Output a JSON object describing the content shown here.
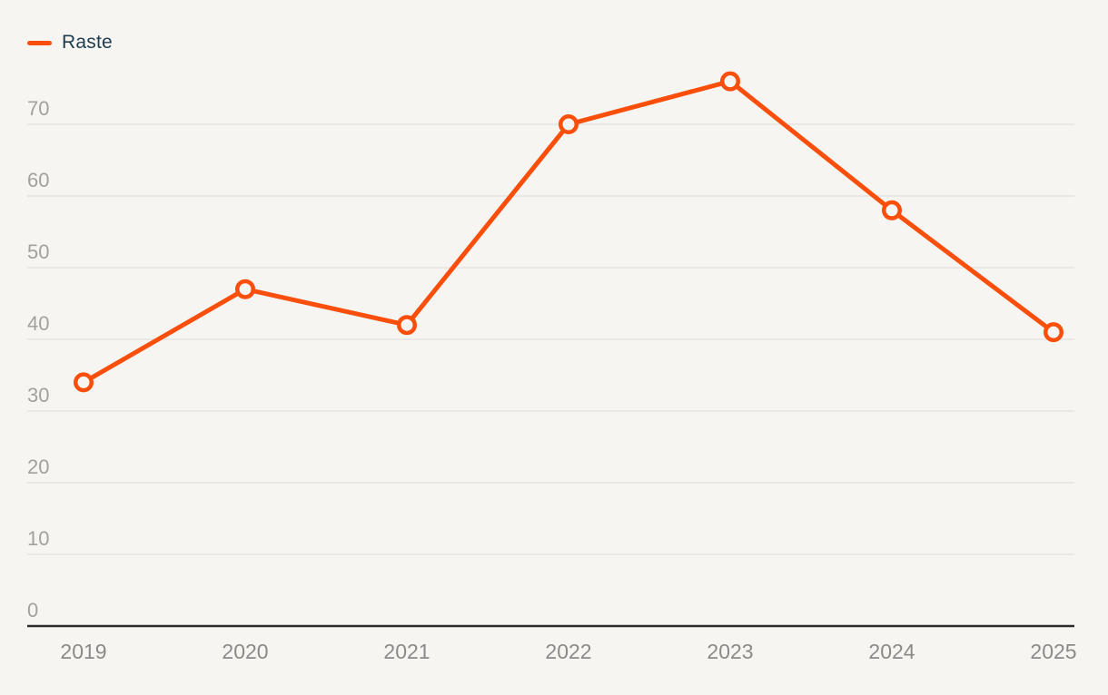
{
  "chart": {
    "legend": {
      "position": "top-left"
    },
    "colors": {
      "series": "#fa4e0b",
      "background": "#f7f5f2",
      "grid": "#e3e1de",
      "axis": "#2b2b2b",
      "y_label": "#a3a19e",
      "x_label": "#8c8a88",
      "legend_text": "#1d3c4e",
      "marker_fill": "#f7f5f2"
    }
  },
  "chart_data": {
    "type": "line",
    "title": "",
    "xlabel": "",
    "ylabel": "",
    "categories": [
      "2019",
      "2020",
      "2021",
      "2022",
      "2023",
      "2024",
      "2025"
    ],
    "series": [
      {
        "name": "Raste",
        "values": [
          34,
          47,
          42,
          70,
          76,
          58,
          41
        ]
      }
    ],
    "ylim": [
      0,
      80
    ],
    "yticks": [
      0,
      10,
      20,
      30,
      40,
      50,
      60,
      70
    ],
    "grid": true,
    "legend_position": "top-left",
    "marker": "open-circle"
  }
}
